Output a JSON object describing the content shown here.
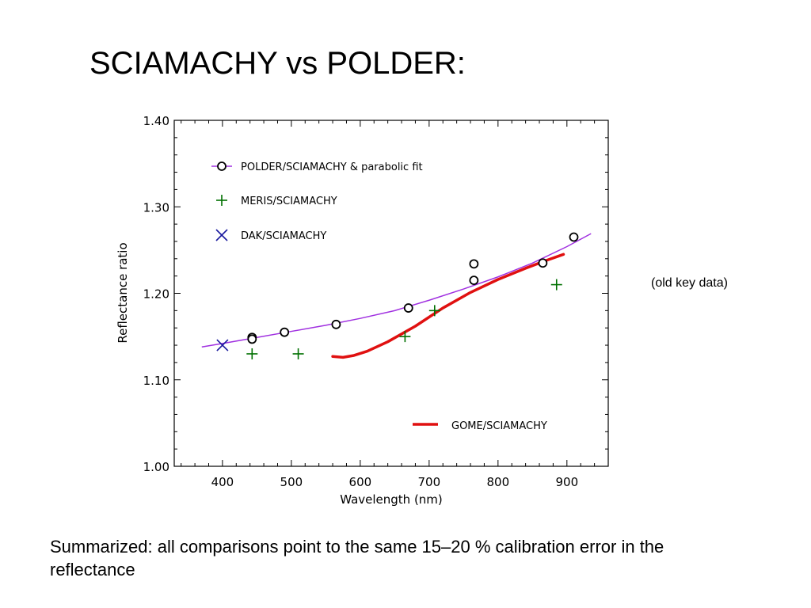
{
  "slide": {
    "title": "SCIAMACHY vs POLDER:",
    "side_note": "(old key data)",
    "summary": "Summarized: all comparisons point to the same 15–20 % calibration error in the reflectance"
  },
  "chart_data": {
    "type": "scatter",
    "xlabel": "Wavelength (nm)",
    "ylabel": "Reflectance ratio",
    "xlim": [
      330,
      960
    ],
    "ylim": [
      1.0,
      1.4
    ],
    "xticks": [
      400,
      500,
      600,
      700,
      800,
      900
    ],
    "xtick_labels": [
      "400",
      "500",
      "600",
      "700",
      "800",
      "900"
    ],
    "yticks": [
      1.0,
      1.1,
      1.2,
      1.3,
      1.4
    ],
    "ytick_labels": [
      "1.00",
      "1.10",
      "1.20",
      "1.30",
      "1.40"
    ],
    "grid": false,
    "legend_position": "top-left",
    "series": [
      {
        "name": "POLDER/SCIAMACHY & parabolic fit",
        "marker": "circle",
        "color": "#000000",
        "points": [
          [
            443,
            1.149
          ],
          [
            443,
            1.147
          ],
          [
            490,
            1.155
          ],
          [
            565,
            1.164
          ],
          [
            670,
            1.183
          ],
          [
            765,
            1.234
          ],
          [
            765,
            1.215
          ],
          [
            865,
            1.235
          ],
          [
            910,
            1.265
          ]
        ],
        "fit": {
          "color": "#a030e0",
          "x": [
            370,
            400,
            450,
            500,
            550,
            600,
            650,
            700,
            750,
            800,
            850,
            900,
            935
          ],
          "y": [
            1.138,
            1.142,
            1.149,
            1.156,
            1.163,
            1.171,
            1.18,
            1.192,
            1.205,
            1.219,
            1.235,
            1.254,
            1.269
          ]
        }
      },
      {
        "name": "MERIS/SCIAMACHY",
        "marker": "plus",
        "color": "#007000",
        "points": [
          [
            443,
            1.13
          ],
          [
            510,
            1.13
          ],
          [
            665,
            1.15
          ],
          [
            708,
            1.18
          ],
          [
            885,
            1.21
          ]
        ]
      },
      {
        "name": "DAK/SCIAMACHY",
        "marker": "x",
        "color": "#1a1a9e",
        "points": [
          [
            400,
            1.14
          ]
        ]
      },
      {
        "name": "GOME/SCIAMACHY",
        "marker": "line",
        "color": "#e01010",
        "x": [
          560,
          575,
          590,
          610,
          640,
          680,
          720,
          760,
          800,
          840,
          870,
          895
        ],
        "y": [
          1.127,
          1.126,
          1.128,
          1.133,
          1.144,
          1.162,
          1.183,
          1.201,
          1.216,
          1.229,
          1.238,
          1.245
        ]
      }
    ]
  }
}
